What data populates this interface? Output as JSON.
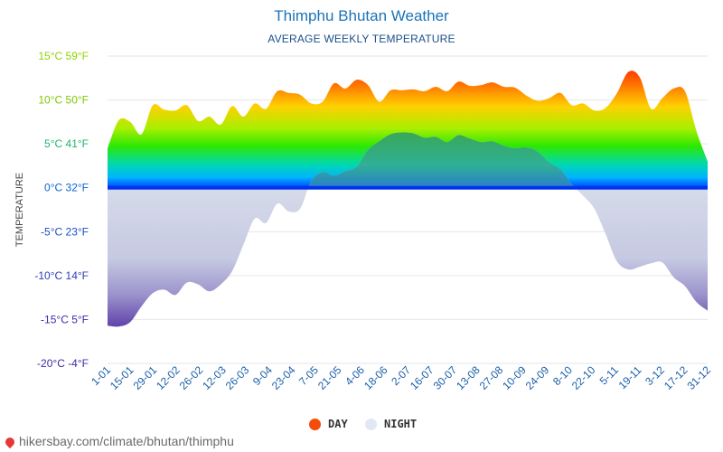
{
  "title": "Thimphu Bhutan Weather",
  "subtitle": "AVERAGE WEEKLY TEMPERATURE",
  "legend": {
    "day_label": "DAY",
    "night_label": "NIGHT",
    "day_color": "#f44c0a",
    "night_color": "#e1e8f3"
  },
  "footer": {
    "text": "hikersbay.com/climate/bhutan/thimphu"
  },
  "chart_data": {
    "type": "area",
    "ylabel": "TEMPERATURE",
    "ylim": [
      -20,
      15
    ],
    "y_ticks": [
      {
        "c": 15,
        "label": "15°C 59°F",
        "color": "#8fd400"
      },
      {
        "c": 10,
        "label": "10°C 50°F",
        "color": "#7ec900"
      },
      {
        "c": 5,
        "label": "5°C 41°F",
        "color": "#1fb56e"
      },
      {
        "c": 0,
        "label": "0°C 32°F",
        "color": "#0a63d6"
      },
      {
        "c": -5,
        "label": "-5°C 23°F",
        "color": "#1b4fc4"
      },
      {
        "c": -10,
        "label": "-10°C 14°F",
        "color": "#2a3cb8"
      },
      {
        "c": -15,
        "label": "-15°C 5°F",
        "color": "#3a2ca8"
      },
      {
        "c": -20,
        "label": "-20°C -4°F",
        "color": "#3a2ca8"
      }
    ],
    "x_labels": [
      "1-01",
      "15-01",
      "29-01",
      "12-02",
      "26-02",
      "12-03",
      "26-03",
      "9-04",
      "23-04",
      "7-05",
      "21-05",
      "4-06",
      "18-06",
      "2-07",
      "16-07",
      "30-07",
      "13-08",
      "27-08",
      "10-09",
      "24-09",
      "8-10",
      "22-10",
      "5-11",
      "19-11",
      "3-12",
      "17-12",
      "31-12"
    ],
    "series": [
      {
        "name": "DAY",
        "values": [
          4.5,
          7.7,
          7.5,
          6.1,
          9.4,
          8.9,
          8.8,
          9.4,
          7.6,
          8.1,
          7.2,
          9.3,
          8.1,
          9.6,
          9.0,
          11.0,
          10.8,
          10.6,
          9.6,
          9.8,
          11.9,
          11.3,
          12.3,
          11.7,
          9.8,
          11.1,
          11.1,
          11.2,
          11.0,
          11.5,
          11.0,
          12.1,
          11.6,
          11.7,
          12.0,
          11.5,
          11.4,
          10.5,
          9.9,
          10.2,
          10.8,
          9.4,
          9.6,
          8.8,
          9.1,
          10.8,
          13.2,
          12.6,
          9.0,
          10.2,
          11.3,
          11.0,
          6.5,
          3.0
        ]
      },
      {
        "name": "NIGHT",
        "values": [
          -15.7,
          -15.8,
          -15.3,
          -13.5,
          -12.0,
          -11.6,
          -12.2,
          -10.8,
          -11.0,
          -11.8,
          -11.0,
          -9.5,
          -6.5,
          -3.5,
          -4.0,
          -1.8,
          -2.7,
          -2.4,
          0.8,
          1.8,
          1.4,
          1.9,
          2.4,
          4.3,
          5.3,
          6.1,
          6.3,
          6.2,
          5.7,
          5.8,
          5.2,
          6.0,
          5.6,
          5.2,
          5.3,
          4.8,
          4.5,
          4.6,
          4.1,
          2.9,
          2.1,
          0.4,
          -0.9,
          -2.4,
          -5.3,
          -8.4,
          -9.3,
          -9.0,
          -8.6,
          -8.5,
          -10.2,
          -11.2,
          -13.0,
          -14.0
        ]
      }
    ]
  }
}
